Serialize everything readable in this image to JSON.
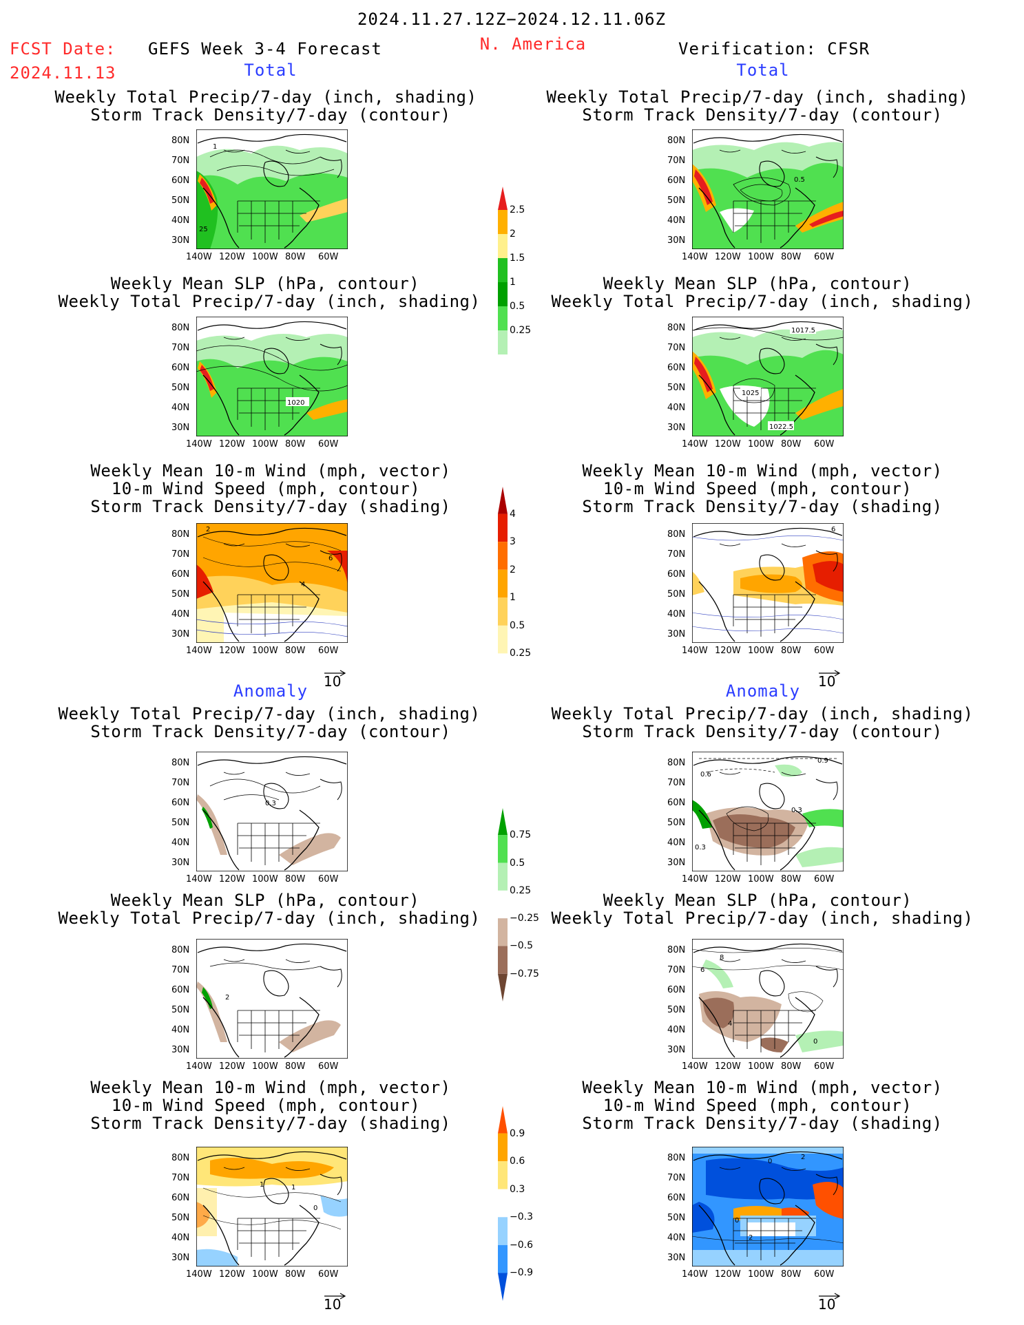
{
  "header": {
    "date_range": "2024.11.27.12Z−2024.12.11.06Z",
    "fcst_label": "FCST Date:",
    "fcst_date": "2024.11.13",
    "forecast_name": "GEFS Week 3-4 Forecast",
    "region": "N. America",
    "verification": "Verification: CFSR"
  },
  "sections": {
    "total": "Total",
    "anomaly": "Anomaly"
  },
  "axes": {
    "lat": [
      "80N",
      "70N",
      "60N",
      "50N",
      "40N",
      "30N"
    ],
    "lon": [
      "140W",
      "120W",
      "100W",
      "80W",
      "60W"
    ]
  },
  "titles": {
    "precip_storm": [
      "Weekly Total Precip/7-day (inch, shading)",
      "Storm Track Density/7-day (contour)"
    ],
    "slp_precip": [
      "Weekly Mean SLP (hPa, contour)",
      "Weekly Total Precip/7-day (inch, shading)"
    ],
    "wind_storm": [
      "Weekly Mean 10-m Wind (mph, vector)",
      "10-m Wind Speed (mph, contour)",
      "Storm Track Density/7-day (shading)"
    ]
  },
  "contour_labels": {
    "p1_left": [
      "1",
      "25"
    ],
    "p1_right": [
      "0.5"
    ],
    "p2_left": [
      "1020"
    ],
    "p2_right": [
      "1017.5",
      "1025",
      "1022.5"
    ],
    "p3_left": [
      "2",
      "6",
      "4"
    ],
    "p3_right": [
      "6"
    ],
    "p4_left": [
      "0.3"
    ],
    "p4_right": [
      "0.9",
      "0.6",
      "0.3",
      "0.3"
    ],
    "p5_left": [
      "2"
    ],
    "p5_right": [
      "8",
      "6",
      "4",
      "0"
    ],
    "p6_left": [
      "1",
      "1",
      "0"
    ],
    "p6_right": [
      "0",
      "2",
      "0",
      "2"
    ]
  },
  "vector_scale": "10",
  "colorbars": {
    "precip_total": {
      "labels": [
        "2.5",
        "2",
        "1.5",
        "1",
        "0.5",
        "0.25"
      ],
      "colors": [
        "#ffffff",
        "#b4f0b4",
        "#50e050",
        "#00a000",
        "#20c020",
        "#fff08c",
        "#ffb000",
        "#e61e1e"
      ]
    },
    "storm_total": {
      "labels": [
        "4",
        "3",
        "2",
        "1",
        "0.5",
        "0.25"
      ],
      "colors": [
        "#ffffff",
        "#fff5b4",
        "#ffd25a",
        "#ffa500",
        "#ff6e00",
        "#e61e00",
        "#aa0000"
      ]
    },
    "precip_anom": {
      "labels": [
        "0.75",
        "0.5",
        "0.25",
        "−0.25",
        "−0.5",
        "−0.75"
      ],
      "colors": [
        "#6e4632",
        "#9b6e5a",
        "#d2b4a0",
        "#ffffff",
        "#b4f0b4",
        "#50e050",
        "#00a000"
      ]
    },
    "storm_anom": {
      "labels": [
        "0.9",
        "0.6",
        "0.3",
        "−0.3",
        "−0.6",
        "−0.9"
      ],
      "colors": [
        "#0050dc",
        "#3296ff",
        "#96d2ff",
        "#ffffff",
        "#ffe678",
        "#ffa500",
        "#ff5000"
      ]
    }
  }
}
